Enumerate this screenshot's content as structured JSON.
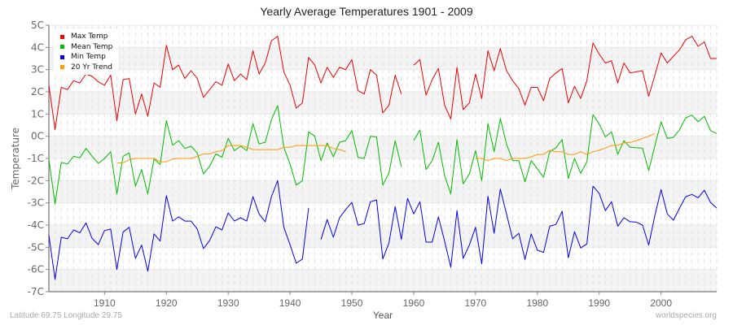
{
  "header": {
    "title": "Yearly Average Temperatures 1901 - 2009"
  },
  "legend": {
    "items": [
      {
        "label": "Max Temp",
        "color": "#ee0000"
      },
      {
        "label": "Mean Temp",
        "color": "#00bb00"
      },
      {
        "label": "Min Temp",
        "color": "#0000ee"
      },
      {
        "label": "20 Yr Trend",
        "color": "#ff9900"
      }
    ]
  },
  "footer": {
    "left": "Latitude 69.75 Longitude 29.75",
    "right": "worldspecies.org"
  },
  "chart_data": {
    "type": "line",
    "title": "Yearly Average Temperatures 1901 - 2009",
    "xlabel": "Year",
    "ylabel": "Temperature",
    "xlim": [
      1901,
      2009
    ],
    "ylim": [
      -7,
      5
    ],
    "yticks": [
      "5C",
      "4C",
      "3C",
      "2C",
      "1C",
      "0C",
      "-1C",
      "-2C",
      "-3C",
      "-4C",
      "-5C",
      "-6C",
      "-7C"
    ],
    "xticks": [
      "1910",
      "1920",
      "1930",
      "1940",
      "1950",
      "1960",
      "1970",
      "1980",
      "1990",
      "2000"
    ],
    "grid": true,
    "legend_position": "top-left",
    "x_start": 1901,
    "series": [
      {
        "name": "Max Temp",
        "color": "#ee0000",
        "values": [
          2.3,
          0.3,
          2.2,
          2.1,
          2.5,
          2.4,
          2.8,
          2.7,
          2.45,
          2.3,
          2.75,
          0.7,
          2.55,
          2.6,
          1.0,
          1.9,
          0.9,
          2.4,
          2.2,
          4.1,
          3.0,
          3.2,
          2.6,
          2.95,
          2.6,
          1.75,
          2.1,
          2.45,
          2.3,
          3.25,
          2.5,
          2.8,
          2.55,
          3.85,
          2.8,
          3.3,
          4.3,
          4.5,
          2.9,
          2.3,
          1.27,
          1.5,
          3.55,
          3.2,
          2.4,
          3.1,
          2.65,
          3.1,
          3.0,
          3.45,
          2.05,
          1.9,
          3.0,
          2.75,
          1.05,
          1.4,
          2.75,
          1.9,
          null,
          3.2,
          3.45,
          1.85,
          2.55,
          3.05,
          1.4,
          0.77,
          3.1,
          1.2,
          1.5,
          2.8,
          1.7,
          3.85,
          2.95,
          3.95,
          2.95,
          2.5,
          2.15,
          1.4,
          2.2,
          2.2,
          1.6,
          2.6,
          2.85,
          3.05,
          1.5,
          2.25,
          1.7,
          2.5,
          4.2,
          3.7,
          3.3,
          3.4,
          2.4,
          3.3,
          2.85,
          2.9,
          2.95,
          1.8,
          2.75,
          3.75,
          3.3,
          3.6,
          3.9,
          4.35,
          4.5,
          4.05,
          4.25,
          3.5,
          3.5
        ]
      },
      {
        "name": "Mean Temp",
        "color": "#00bb00",
        "values": [
          -1.04,
          -3.05,
          -1.18,
          -1.25,
          -0.9,
          -0.97,
          -0.55,
          -0.9,
          -1.22,
          -1.0,
          -0.7,
          -2.6,
          -0.9,
          -0.75,
          -2.25,
          -1.5,
          -2.6,
          -1.03,
          -1.27,
          0.7,
          -0.4,
          -0.2,
          -0.55,
          -0.45,
          -0.75,
          -1.7,
          -1.35,
          -0.8,
          -0.95,
          -0.1,
          -0.65,
          -0.45,
          -0.65,
          0.57,
          -0.35,
          -0.27,
          0.75,
          1.38,
          -0.5,
          -1.25,
          -2.2,
          -2.0,
          0.2,
          0.0,
          -1.1,
          -0.3,
          -0.93,
          -0.27,
          -0.2,
          0.25,
          -0.95,
          -1.0,
          0.0,
          -0.03,
          -2.2,
          -1.65,
          -0.2,
          -1.37,
          null,
          -0.2,
          0.28,
          -1.5,
          -1.1,
          -0.27,
          -1.77,
          -2.6,
          -0.15,
          -2.15,
          -1.7,
          -0.65,
          -2.0,
          0.57,
          -0.7,
          0.8,
          -0.35,
          -1.1,
          -1.1,
          -2.05,
          -1.1,
          -1.47,
          -1.85,
          -0.7,
          -0.52,
          -0.15,
          -1.9,
          -1.0,
          -1.67,
          -1.15,
          0.97,
          0.55,
          -0.03,
          0.2,
          -0.82,
          -0.2,
          -0.5,
          -0.52,
          -0.53,
          -1.55,
          -0.42,
          0.65,
          -0.1,
          -0.05,
          0.3,
          0.83,
          0.95,
          0.65,
          0.9,
          0.25,
          0.12
        ]
      },
      {
        "name": "Min Temp",
        "color": "#0000ee",
        "values": [
          -4.45,
          -6.45,
          -4.55,
          -4.62,
          -4.22,
          -4.35,
          -3.9,
          -4.6,
          -4.88,
          -4.25,
          -4.18,
          -6.0,
          -4.32,
          -4.1,
          -5.5,
          -4.9,
          -6.08,
          -4.4,
          -4.72,
          -2.68,
          -3.82,
          -3.63,
          -3.82,
          -3.82,
          -4.18,
          -5.06,
          -4.7,
          -4.08,
          -4.22,
          -3.45,
          -3.82,
          -3.67,
          -3.82,
          -2.72,
          -3.5,
          -3.85,
          -2.72,
          -2.0,
          -4.1,
          -4.88,
          -5.72,
          -5.53,
          -3.23,
          null,
          -4.65,
          -3.75,
          -4.55,
          -3.67,
          -3.3,
          -2.98,
          -4.0,
          -3.93,
          -2.95,
          -2.87,
          -5.53,
          -4.8,
          -3.17,
          -4.65,
          -2.8,
          -3.5,
          -2.95,
          -4.77,
          -4.77,
          -3.63,
          -4.72,
          -5.9,
          -3.35,
          -5.5,
          -4.9,
          -4.1,
          -5.75,
          -2.7,
          -4.37,
          -2.38,
          -3.5,
          -4.62,
          -4.37,
          -5.55,
          -4.4,
          -5.13,
          -5.23,
          -4.05,
          -3.97,
          -3.38,
          -5.47,
          -4.3,
          -5.03,
          -4.85,
          -2.25,
          -2.57,
          -3.35,
          -2.95,
          -4.05,
          -3.67,
          -3.85,
          -3.87,
          -4.0,
          -4.9,
          -3.57,
          -2.4,
          -3.5,
          -3.78,
          -3.23,
          -2.72,
          -2.62,
          -2.77,
          -2.43,
          -2.98,
          -3.23
        ]
      },
      {
        "name": "20 Yr Trend",
        "color": "#ff9900",
        "values": [
          null,
          null,
          null,
          null,
          null,
          null,
          null,
          null,
          null,
          null,
          null,
          -1.2,
          -1.2,
          -1.05,
          -1.0,
          -1.0,
          -1.0,
          -1.0,
          -1.15,
          -1.15,
          -1.03,
          -1.0,
          -1.0,
          -1.0,
          -0.9,
          -0.8,
          -0.8,
          -0.7,
          -0.65,
          -0.42,
          -0.42,
          -0.42,
          -0.5,
          -0.6,
          -0.6,
          -0.6,
          -0.6,
          -0.6,
          -0.5,
          -0.5,
          -0.42,
          -0.42,
          -0.42,
          -0.42,
          -0.42,
          -0.42,
          -0.55,
          -0.6,
          -0.7,
          null,
          null,
          null,
          null,
          null,
          null,
          null,
          null,
          null,
          null,
          null,
          null,
          null,
          null,
          null,
          null,
          null,
          null,
          null,
          null,
          -1.0,
          -1.0,
          -1.1,
          -1.0,
          -1.0,
          -1.1,
          -1.0,
          -1.0,
          -1.0,
          -0.93,
          -0.82,
          -0.82,
          -0.63,
          -0.7,
          -0.7,
          -0.82,
          -0.82,
          -0.7,
          -0.82,
          -0.7,
          -0.63,
          -0.53,
          -0.42,
          -0.4,
          -0.3,
          -0.28,
          -0.2,
          -0.1,
          0.0,
          0.12,
          null,
          null,
          null,
          null,
          null,
          null,
          null,
          null,
          null,
          null
        ]
      }
    ]
  }
}
